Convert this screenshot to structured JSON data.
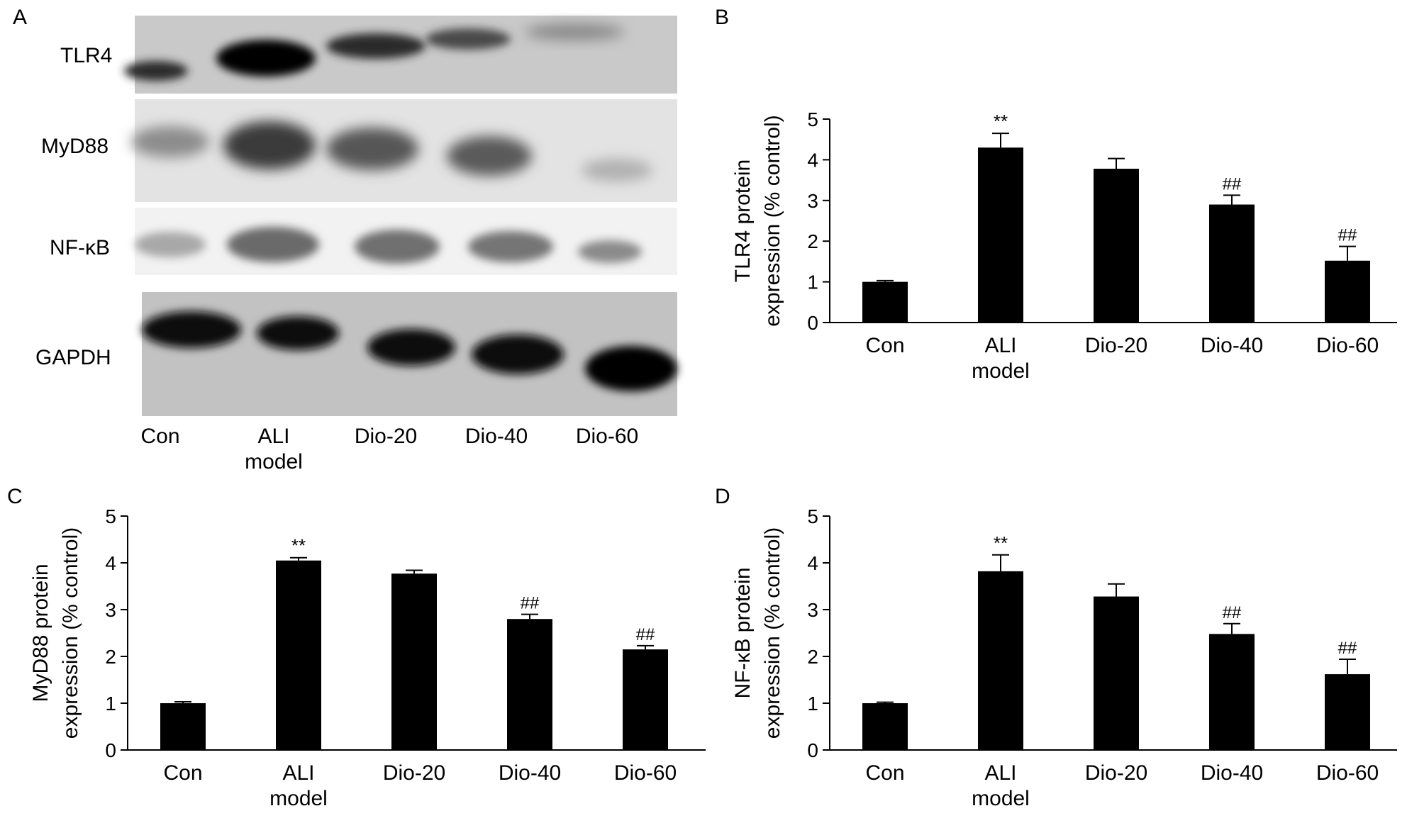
{
  "panels": {
    "a": "A",
    "b": "B",
    "c": "C",
    "d": "D"
  },
  "blot": {
    "bands": [
      "TLR4",
      "MyD88",
      "NF-κB",
      "GAPDH"
    ],
    "lanes": [
      {
        "line1": "Con",
        "line2": ""
      },
      {
        "line1": "ALI",
        "line2": "model"
      },
      {
        "line1": "Dio-20",
        "line2": ""
      },
      {
        "line1": "Dio-40",
        "line2": ""
      },
      {
        "line1": "Dio-60",
        "line2": ""
      }
    ]
  },
  "chart_data": [
    {
      "panel": "B",
      "type": "bar",
      "categories": [
        [
          "Con"
        ],
        [
          "ALI",
          "model"
        ],
        [
          "Dio-20"
        ],
        [
          "Dio-40"
        ],
        [
          "Dio-60"
        ]
      ],
      "values": [
        1.0,
        4.3,
        3.78,
        2.9,
        1.52
      ],
      "errors": [
        0.03,
        0.35,
        0.25,
        0.23,
        0.35
      ],
      "annotations": [
        "",
        "**",
        "",
        "##",
        "##"
      ],
      "ylabel_line1": "TLR4 protein",
      "ylabel_line2": "expression (% control)",
      "ylim": [
        0,
        5
      ],
      "yticks": [
        0,
        1,
        2,
        3,
        4,
        5
      ],
      "bar_color": "#000000"
    },
    {
      "panel": "C",
      "type": "bar",
      "categories": [
        [
          "Con"
        ],
        [
          "ALI",
          "model"
        ],
        [
          "Dio-20"
        ],
        [
          "Dio-40"
        ],
        [
          "Dio-60"
        ]
      ],
      "values": [
        1.0,
        4.05,
        3.77,
        2.8,
        2.15
      ],
      "errors": [
        0.03,
        0.06,
        0.07,
        0.1,
        0.08
      ],
      "annotations": [
        "",
        "**",
        "",
        "##",
        "##"
      ],
      "ylabel_line1": "MyD88 protein",
      "ylabel_line2": "expression (% control)",
      "ylim": [
        0,
        5
      ],
      "yticks": [
        0,
        1,
        2,
        3,
        4,
        5
      ],
      "bar_color": "#000000"
    },
    {
      "panel": "D",
      "type": "bar",
      "categories": [
        [
          "Con"
        ],
        [
          "ALI",
          "model"
        ],
        [
          "Dio-20"
        ],
        [
          "Dio-40"
        ],
        [
          "Dio-60"
        ]
      ],
      "values": [
        1.0,
        3.82,
        3.28,
        2.48,
        1.62
      ],
      "errors": [
        0.02,
        0.35,
        0.27,
        0.22,
        0.32
      ],
      "annotations": [
        "",
        "**",
        "",
        "##",
        "##"
      ],
      "ylabel_line1": "NF-κB protein",
      "ylabel_line2": "expression (% control)",
      "ylim": [
        0,
        5
      ],
      "yticks": [
        0,
        1,
        2,
        3,
        4,
        5
      ],
      "bar_color": "#000000"
    }
  ]
}
